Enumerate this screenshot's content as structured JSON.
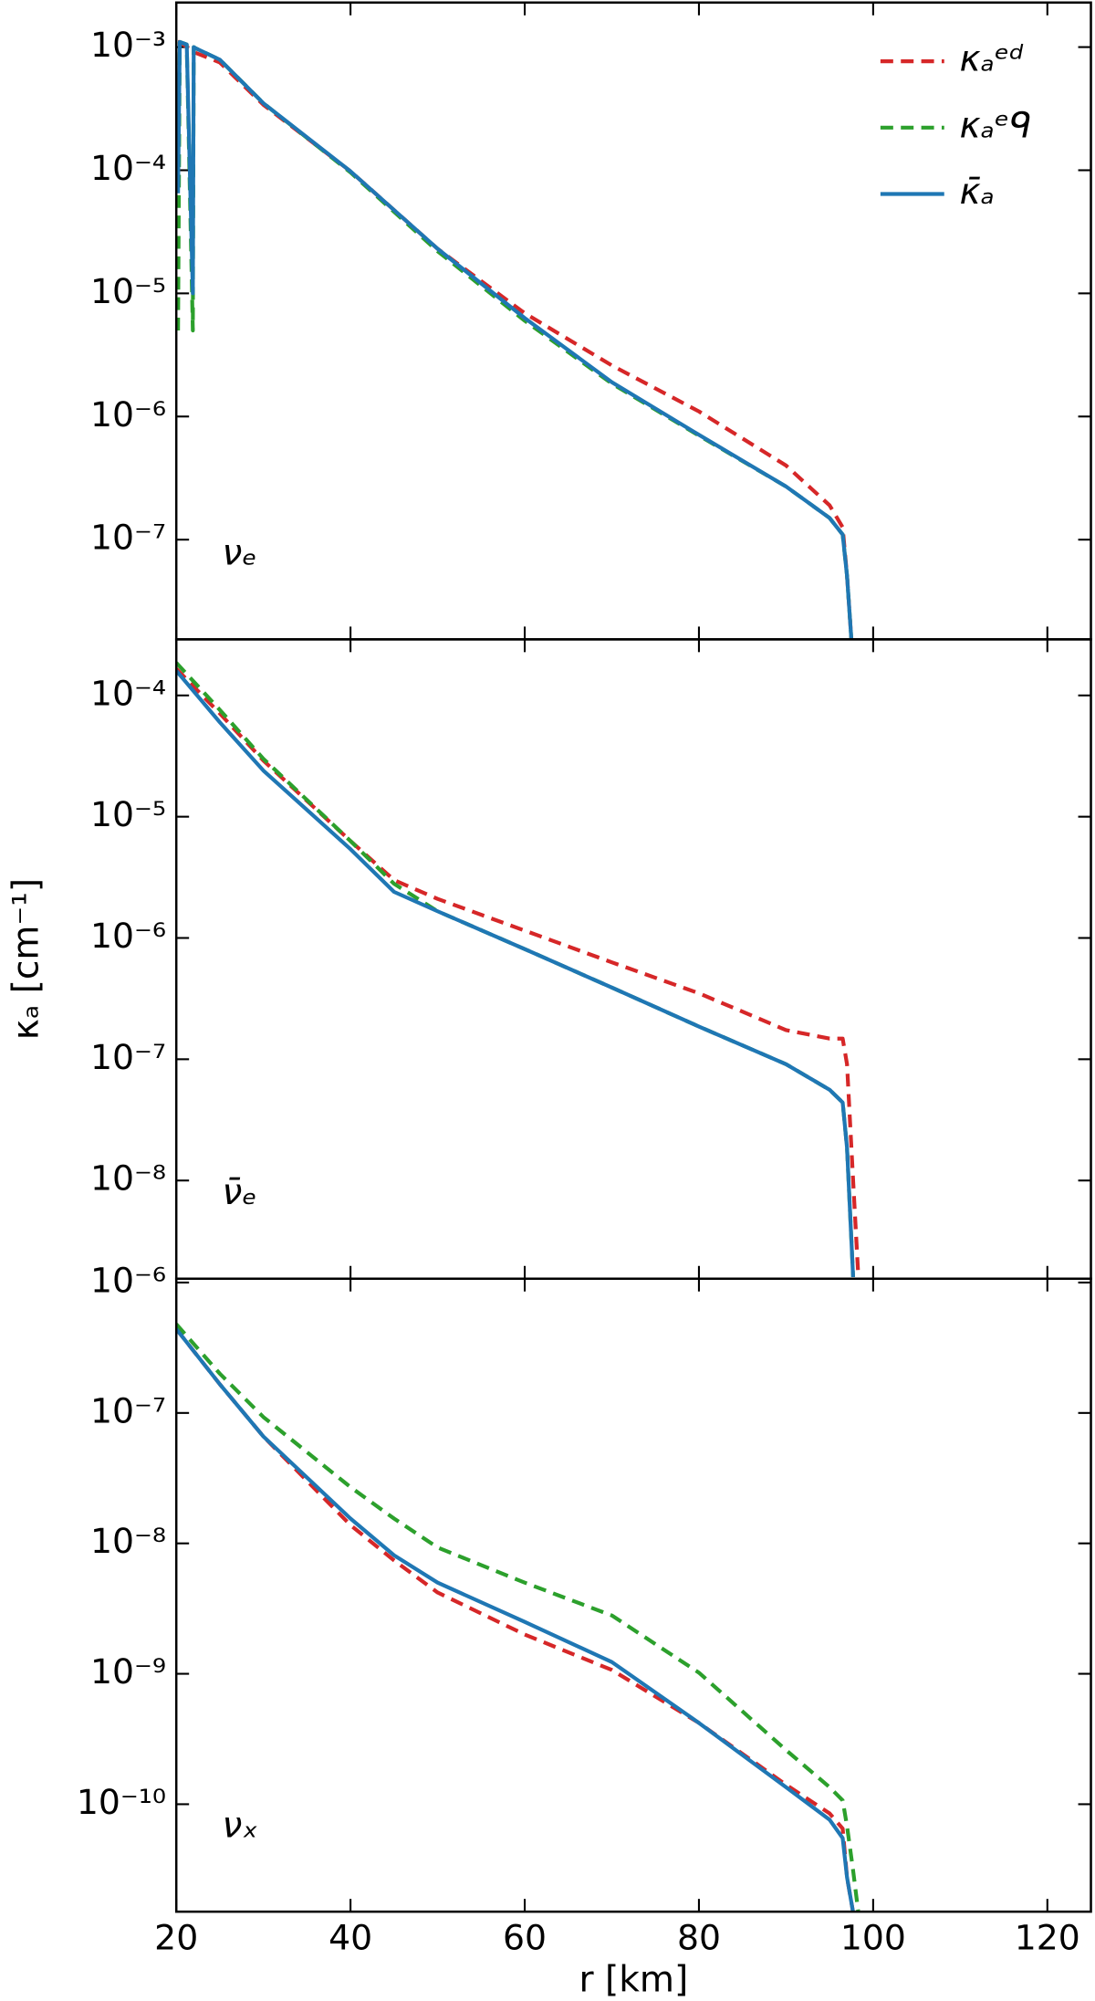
{
  "chart_data": [
    {
      "type": "line",
      "yscale": "log",
      "xlim": [
        20,
        125
      ],
      "ylim": [
        1.55e-08,
        0.0023
      ],
      "xticks": [
        20,
        40,
        60,
        80,
        100,
        120
      ],
      "yticks": [
        {
          "value": 0.001,
          "label": "10⁻³"
        },
        {
          "value": 0.0001,
          "label": "10⁻⁴"
        },
        {
          "value": 1e-05,
          "label": "10⁻⁵"
        },
        {
          "value": 1e-06,
          "label": "10⁻⁶"
        },
        {
          "value": 1e-07,
          "label": "10⁻⁷"
        }
      ],
      "annotation": "νₑ",
      "legend": "upper right",
      "x": [
        20.2,
        20.4,
        21.2,
        21.9,
        22.0,
        22.2,
        25,
        30,
        40,
        50,
        60,
        70,
        80,
        90,
        95,
        96.5,
        97,
        97.5
      ],
      "series": [
        {
          "name": "κₐᵉᵈ",
          "color": "#d62728",
          "linestyle": "dashed",
          "values": [
            0.0011,
            0.0011,
            0.001,
            0.00095,
            0.00093,
            0.0009,
            0.00075,
            0.00034,
            9.8e-05,
            2.3e-05,
            6.9e-06,
            2.6e-06,
            1.1e-06,
            4e-07,
            1.9e-07,
            1.26e-07,
            5.1e-08,
            1.55e-08
          ]
        },
        {
          "name": "κₐᵉᑫ",
          "color": "#2ca02c",
          "linestyle": "dashed",
          "values": [
            5e-06,
            0.0011,
            0.00105,
            5e-06,
            0.001,
            0.00098,
            0.00079,
            0.00035,
            9.6e-05,
            2.2e-05,
            6e-06,
            1.85e-06,
            7e-07,
            2.7e-07,
            1.5e-07,
            1.1e-07,
            5.1e-08,
            1.55e-08
          ]
        },
        {
          "name": "κ̄ₐ",
          "color": "#1f77b4",
          "linestyle": "solid",
          "values": [
            6.5e-05,
            0.0011,
            0.00105,
            1e-05,
            0.001,
            0.00098,
            0.00079,
            0.00035,
            9.8e-05,
            2.3e-05,
            6.3e-06,
            1.9e-06,
            7.1e-07,
            2.7e-07,
            1.5e-07,
            1.1e-07,
            5.1e-08,
            1.55e-08
          ]
        }
      ]
    },
    {
      "type": "line",
      "yscale": "log",
      "xlim": [
        20,
        125
      ],
      "ylim": [
        1.55e-09,
        0.00029
      ],
      "xticks": [
        20,
        40,
        60,
        80,
        100,
        120
      ],
      "yticks": [
        {
          "value": 0.0001,
          "label": "10⁻⁴"
        },
        {
          "value": 1e-05,
          "label": "10⁻⁵"
        },
        {
          "value": 1e-06,
          "label": "10⁻⁶"
        },
        {
          "value": 1e-07,
          "label": "10⁻⁷"
        },
        {
          "value": 1e-08,
          "label": "10⁻⁸"
        }
      ],
      "annotation": "ν̄ₑ",
      "ylabel": "κₐ [cm⁻¹]",
      "x": [
        20,
        25,
        30,
        40,
        45,
        50,
        60,
        70,
        80,
        90,
        95,
        96.5,
        97,
        97.7,
        98.3
      ],
      "series": [
        {
          "name": "κₐᵉᵈ",
          "color": "#d62728",
          "linestyle": "dashed",
          "values": [
            0.000166,
            7.1e-05,
            2.9e-05,
            6.3e-06,
            3e-06,
            2.1e-06,
            1.15e-06,
            6.3e-07,
            3.5e-07,
            1.74e-07,
            1.48e-07,
            1.48e-07,
            9.1e-08,
            1e-08,
            1.6e-09
          ]
        },
        {
          "name": "κₐᵉᑫ",
          "color": "#2ca02c",
          "linestyle": "dashed",
          "values": [
            0.000186,
            7.6e-05,
            3e-05,
            6.3e-06,
            2.8e-06,
            1.66e-06,
            8.1e-07,
            3.9e-07,
            1.86e-07,
            9.1e-08,
            5.6e-08,
            4.4e-08,
            1.86e-08,
            1.6e-09,
            null
          ]
        },
        {
          "name": "κ̄ₐ",
          "color": "#1f77b4",
          "linestyle": "solid",
          "values": [
            0.00016,
            6e-05,
            2.4e-05,
            5.4e-06,
            2.4e-06,
            1.66e-06,
            8.1e-07,
            3.9e-07,
            1.86e-07,
            9.1e-08,
            5.6e-08,
            4.4e-08,
            1.86e-08,
            1.6e-09,
            null
          ]
        }
      ]
    },
    {
      "type": "line",
      "yscale": "log",
      "xlim": [
        20,
        125
      ],
      "ylim": [
        1.5e-11,
        1.07e-06
      ],
      "xticks": [
        20,
        40,
        60,
        80,
        100,
        120
      ],
      "yticks": [
        {
          "value": 1e-06,
          "label": "10⁻⁶"
        },
        {
          "value": 1e-07,
          "label": "10⁻⁷"
        },
        {
          "value": 1e-08,
          "label": "10⁻⁸"
        },
        {
          "value": 1e-09,
          "label": "10⁻⁹"
        },
        {
          "value": 1e-10,
          "label": "10⁻¹⁰"
        }
      ],
      "annotation": "νₓ",
      "xlabel": "r [km]",
      "x": [
        20,
        25,
        30,
        40,
        45,
        50,
        60,
        70,
        80,
        90,
        95,
        96.5,
        97,
        97.7,
        98.3
      ],
      "series": [
        {
          "name": "κₐᵉᵈ",
          "color": "#d62728",
          "linestyle": "dashed",
          "values": [
            4.4e-07,
            1.66e-07,
            6.6e-08,
            1.38e-08,
            7.4e-09,
            4.2e-09,
            2e-09,
            1.07e-09,
            4.2e-10,
            1.41e-10,
            8.5e-11,
            6.5e-11,
            2.75e-11,
            1.48e-11,
            null
          ]
        },
        {
          "name": "κₐᵉᑫ",
          "color": "#2ca02c",
          "linestyle": "dashed",
          "values": [
            4.8e-07,
            2e-07,
            9.3e-08,
            2.7e-08,
            1.55e-08,
            9.3e-09,
            5e-09,
            2.8e-09,
            1.02e-09,
            2.6e-10,
            1.35e-10,
            1.07e-10,
            6.8e-11,
            3.1e-11,
            1.48e-11
          ]
        },
        {
          "name": "κ̄ₐ",
          "color": "#1f77b4",
          "linestyle": "solid",
          "values": [
            4.4e-07,
            1.66e-07,
            6.6e-08,
            1.55e-08,
            8.1e-09,
            5e-09,
            2.5e-09,
            1.23e-09,
            4.2e-10,
            1.35e-10,
            7.6e-11,
            5.5e-11,
            2.75e-11,
            1.48e-11,
            null
          ]
        }
      ]
    }
  ]
}
